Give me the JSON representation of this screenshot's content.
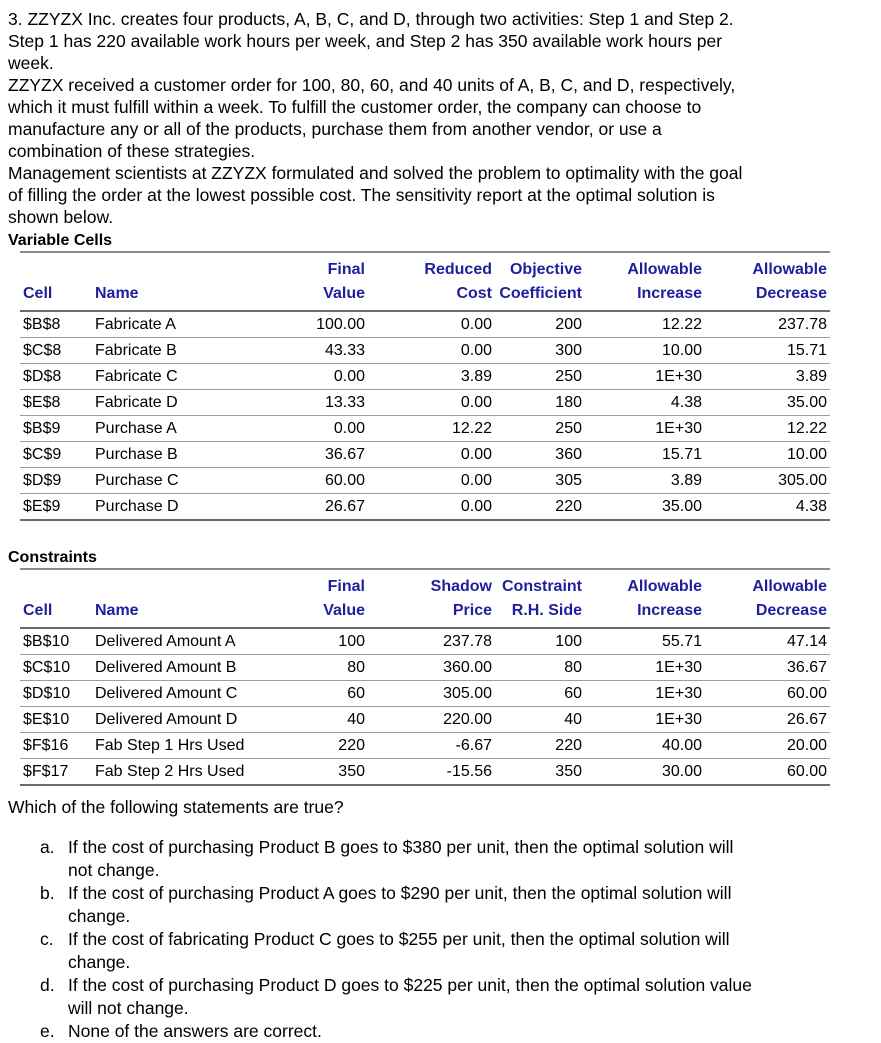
{
  "intro": {
    "text": "3. ZZYZX Inc. creates four products, A, B, C, and D, through two activities: Step 1 and Step 2.\nStep 1 has 220 available work hours per week, and Step 2 has 350 available work hours per\nweek.\nZZYZX received a customer order for 100, 80, 60, and 40 units of A, B, C, and D, respectively,\nwhich it must fulfill within a week. To fulfill the customer order, the company can choose to\nmanufacture any or all of the products, purchase them from another vendor, or use a\ncombination of these strategies.\nManagement scientists at ZZYZX formulated and solved the problem to optimality with the goal\nof filling the order at the lowest possible cost. The sensitivity report at the optimal solution is\nshown below."
  },
  "accent_colors": {
    "header_navy": "#1f1f9e",
    "rule_gray": "#8c8c8c"
  },
  "variable_cells": {
    "title": "Variable Cells",
    "headers": {
      "cell": "Cell",
      "name": "Name",
      "col1": "Final\nValue",
      "col2": "Reduced\nCost",
      "col3": "Objective\nCoefficient",
      "col4": "Allowable\nIncrease",
      "col5": "Allowable\nDecrease"
    },
    "rows": [
      [
        "$B$8",
        "Fabricate A",
        "100.00",
        "0.00",
        "200",
        "12.22",
        "237.78"
      ],
      [
        "$C$8",
        "Fabricate B",
        "43.33",
        "0.00",
        "300",
        "10.00",
        "15.71"
      ],
      [
        "$D$8",
        "Fabricate C",
        "0.00",
        "3.89",
        "250",
        "1E+30",
        "3.89"
      ],
      [
        "$E$8",
        "Fabricate D",
        "13.33",
        "0.00",
        "180",
        "4.38",
        "35.00"
      ],
      [
        "$B$9",
        "Purchase A",
        "0.00",
        "12.22",
        "250",
        "1E+30",
        "12.22"
      ],
      [
        "$C$9",
        "Purchase B",
        "36.67",
        "0.00",
        "360",
        "15.71",
        "10.00"
      ],
      [
        "$D$9",
        "Purchase C",
        "60.00",
        "0.00",
        "305",
        "3.89",
        "305.00"
      ],
      [
        "$E$9",
        "Purchase D",
        "26.67",
        "0.00",
        "220",
        "35.00",
        "4.38"
      ]
    ]
  },
  "constraints": {
    "title": "Constraints",
    "headers": {
      "cell": "Cell",
      "name": "Name",
      "col1": "Final\nValue",
      "col2": "Shadow\nPrice",
      "col3": "Constraint\nR.H. Side",
      "col4": "Allowable\nIncrease",
      "col5": "Allowable\nDecrease"
    },
    "rows": [
      [
        "$B$10",
        "Delivered Amount A",
        "100",
        "237.78",
        "100",
        "55.71",
        "47.14"
      ],
      [
        "$C$10",
        "Delivered Amount B",
        "80",
        "360.00",
        "80",
        "1E+30",
        "36.67"
      ],
      [
        "$D$10",
        "Delivered Amount C",
        "60",
        "305.00",
        "60",
        "1E+30",
        "60.00"
      ],
      [
        "$E$10",
        "Delivered Amount D",
        "40",
        "220.00",
        "40",
        "1E+30",
        "26.67"
      ],
      [
        "$F$16",
        "Fab Step 1 Hrs Used",
        "220",
        "-6.67",
        "220",
        "40.00",
        "20.00"
      ],
      [
        "$F$17",
        "Fab Step 2 Hrs Used",
        "350",
        "-15.56",
        "350",
        "30.00",
        "60.00"
      ]
    ]
  },
  "question": "Which of the following statements are true?",
  "options": [
    {
      "letter": "a.",
      "text": "If the cost of purchasing Product B goes to $380 per unit, then the optimal solution will\nnot change."
    },
    {
      "letter": "b.",
      "text": "If the cost of purchasing Product A goes to $290 per unit, then the optimal solution will\nchange."
    },
    {
      "letter": "c.",
      "text": "If the cost of fabricating Product C goes to $255 per unit, then the optimal solution will\nchange."
    },
    {
      "letter": "d.",
      "text": "If the cost of purchasing Product D goes to $225 per unit, then the optimal solution value\nwill not change."
    },
    {
      "letter": "e.",
      "text": "None of the answers are correct."
    }
  ]
}
